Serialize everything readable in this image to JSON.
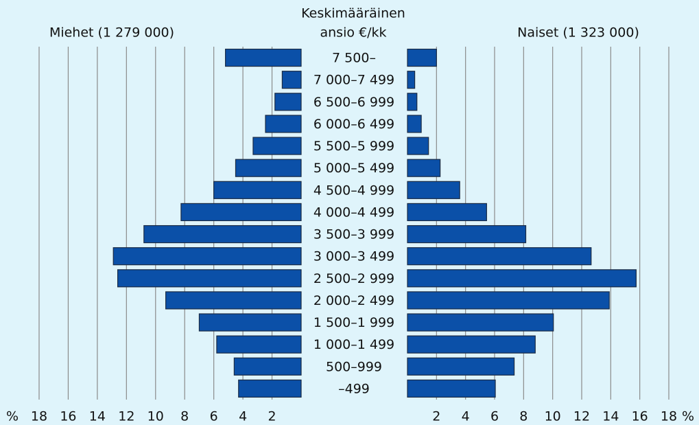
{
  "chart_data": {
    "type": "pyramid",
    "title": [
      "Keskimääräinen",
      "ansio €/kk"
    ],
    "categories": [
      "7 500–",
      "7 000–7 499",
      "6 500–6 999",
      "6 000–6 499",
      "5 500–5 999",
      "5 000–5 499",
      "4 500–4 999",
      "4 000–4 499",
      "3 500–3 999",
      "3 000–3 499",
      "2 500–2 999",
      "2 000–2 499",
      "1 500–1 999",
      "1 000–1 499",
      "500–999",
      "–499"
    ],
    "series": [
      {
        "name": "Miehet (1 279 000)",
        "color": "#0b50a8",
        "values": [
          5.2,
          1.3,
          1.8,
          2.45,
          3.3,
          4.5,
          6.0,
          8.25,
          10.8,
          12.9,
          12.6,
          9.3,
          7.0,
          5.8,
          4.6,
          4.3
        ]
      },
      {
        "name": "Naiset (1 323 000)",
        "color": "#0b50a8",
        "values": [
          2.0,
          0.5,
          0.65,
          0.95,
          1.45,
          2.25,
          3.6,
          5.45,
          8.15,
          12.65,
          15.75,
          13.9,
          10.05,
          8.8,
          7.35,
          6.05
        ]
      }
    ],
    "xlim": [
      0,
      18
    ],
    "xticks": [
      2,
      4,
      6,
      8,
      10,
      12,
      14,
      16,
      18
    ],
    "unit": "%",
    "grid": true
  }
}
